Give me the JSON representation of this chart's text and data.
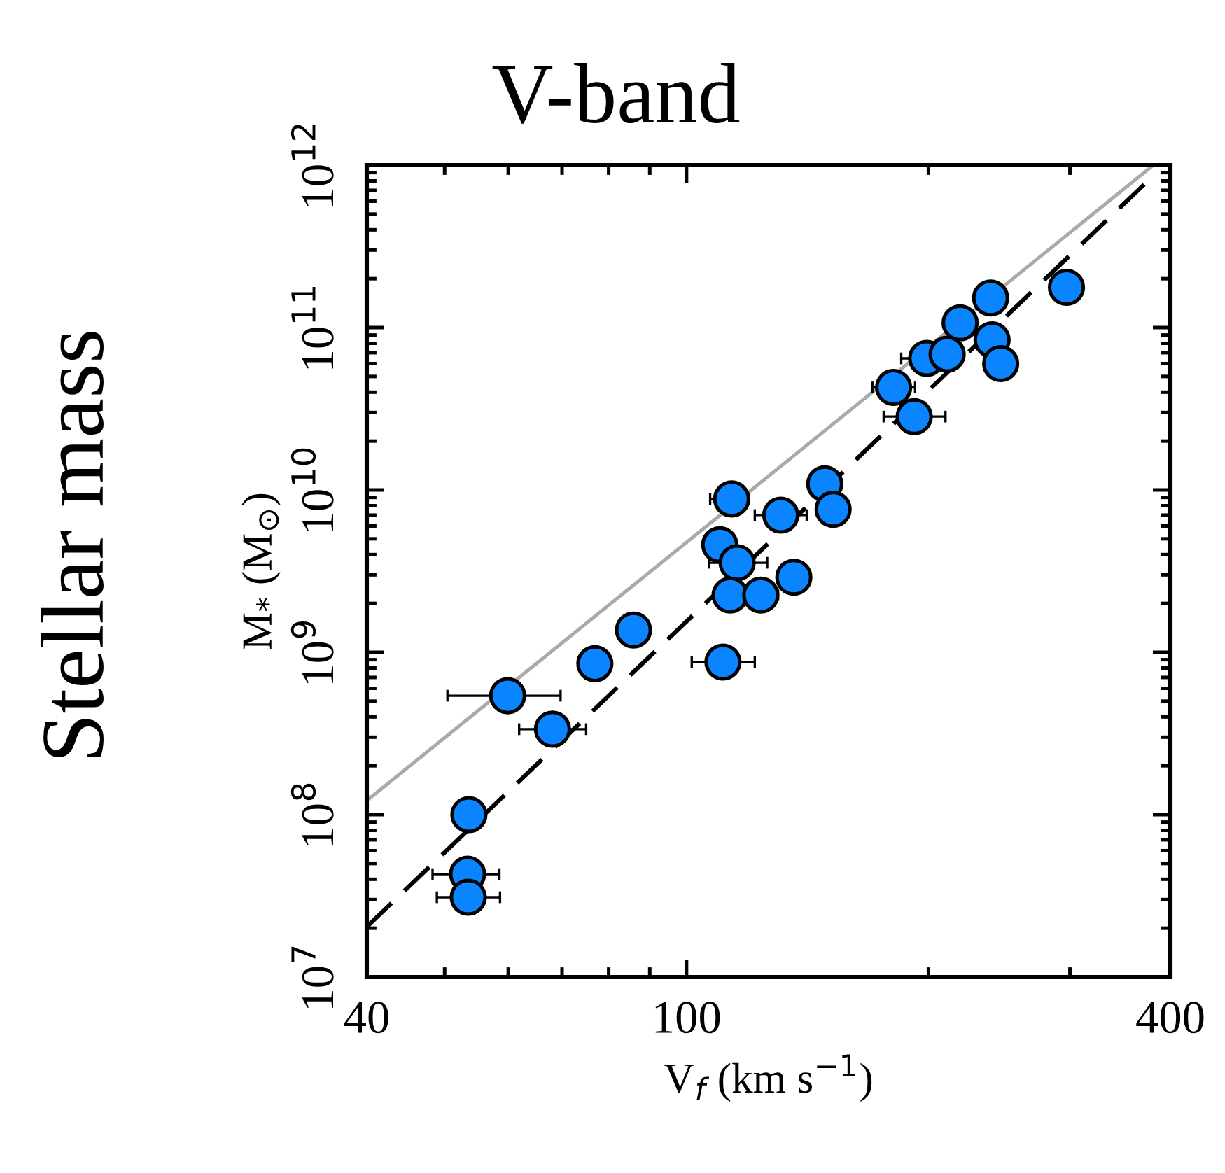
{
  "chart_data": {
    "type": "scatter",
    "title": "V-band",
    "xlabel": "V$_{f}$ (km s$^{−1}$)",
    "ylabel": "M$_{*}$ (M$_{⊙}$)",
    "annotations": [
      "Stellar mass"
    ],
    "log": "xy",
    "grid": false,
    "xlim": [
      40,
      400
    ],
    "xticks": [
      40,
      100,
      400
    ],
    "ylim": [
      10000000.0,
      1000000000000.0
    ],
    "yticks": [
      {
        "value": 10000000.0,
        "label": "10$^{7}$"
      },
      {
        "value": 100000000.0,
        "label": "10$^{8}$"
      },
      {
        "value": 1000000000.0,
        "label": "10$^{9}$"
      },
      {
        "value": 10000000000.0,
        "label": "10$^{10}$"
      },
      {
        "value": 100000000000.0,
        "label": "10$^{11}$"
      },
      {
        "value": 1000000000000.0,
        "label": "10$^{12}$"
      }
    ],
    "series": [
      {
        "type": "line",
        "color": "#aaaaaa",
        "line_style": "solid",
        "marker": "none",
        "x": [
          40,
          381
        ],
        "values": [
          122000000.0,
          1000000000000.0
        ]
      },
      {
        "type": "line",
        "color": "#000000",
        "line_style": "dashed",
        "marker": "none",
        "x": [
          40,
          371
        ],
        "values": [
          20400000.0,
          760000000000.0
        ]
      },
      {
        "color": "#0a84ff",
        "marker": "circle",
        "x": [
          53.6,
          53.4,
          53.5,
          59.9,
          68.1,
          76.9,
          85.9,
          111,
          110,
          115.6,
          113.3,
          123.7,
          136,
          113.8,
          131,
          148.6,
          152.2,
          181,
          192,
          199,
          211,
          219,
          239,
          240,
          246,
          297
        ],
        "values": [
          100000000.0,
          43000000.0,
          31000000.0,
          540000000.0,
          336000000.0,
          850000000.0,
          1370000000.0,
          870000000.0,
          4600000000.0,
          3560000000.0,
          2250000000.0,
          2250000000.0,
          2900000000.0,
          8800000000.0,
          7000000000.0,
          10900000000.0,
          7600000000.0,
          42800000000.0,
          28300000000.0,
          64600000000.0,
          68500000000.0,
          107000000000.0,
          152000000000.0,
          84000000000.0,
          60000000000.0,
          177000000000.0
        ],
        "xerrors": [
          null,
          [
            48.3,
            58.5
          ],
          [
            48.9,
            58.6
          ],
          [
            50.4,
            69.7
          ],
          [
            61.9,
            75.0
          ],
          [
            74.7,
            80.0
          ],
          null,
          [
            101.5,
            121.6
          ],
          null,
          [
            106.7,
            126.0
          ],
          null,
          [
            118.0,
            130.0
          ],
          null,
          [
            107.0,
            119.6
          ],
          [
            121.6,
            141.1
          ],
          null,
          null,
          [
            170.3,
            192.5
          ],
          [
            175.9,
            210.0
          ],
          [
            185.0,
            199
          ],
          null,
          null,
          null,
          null,
          null,
          null
        ]
      }
    ]
  }
}
